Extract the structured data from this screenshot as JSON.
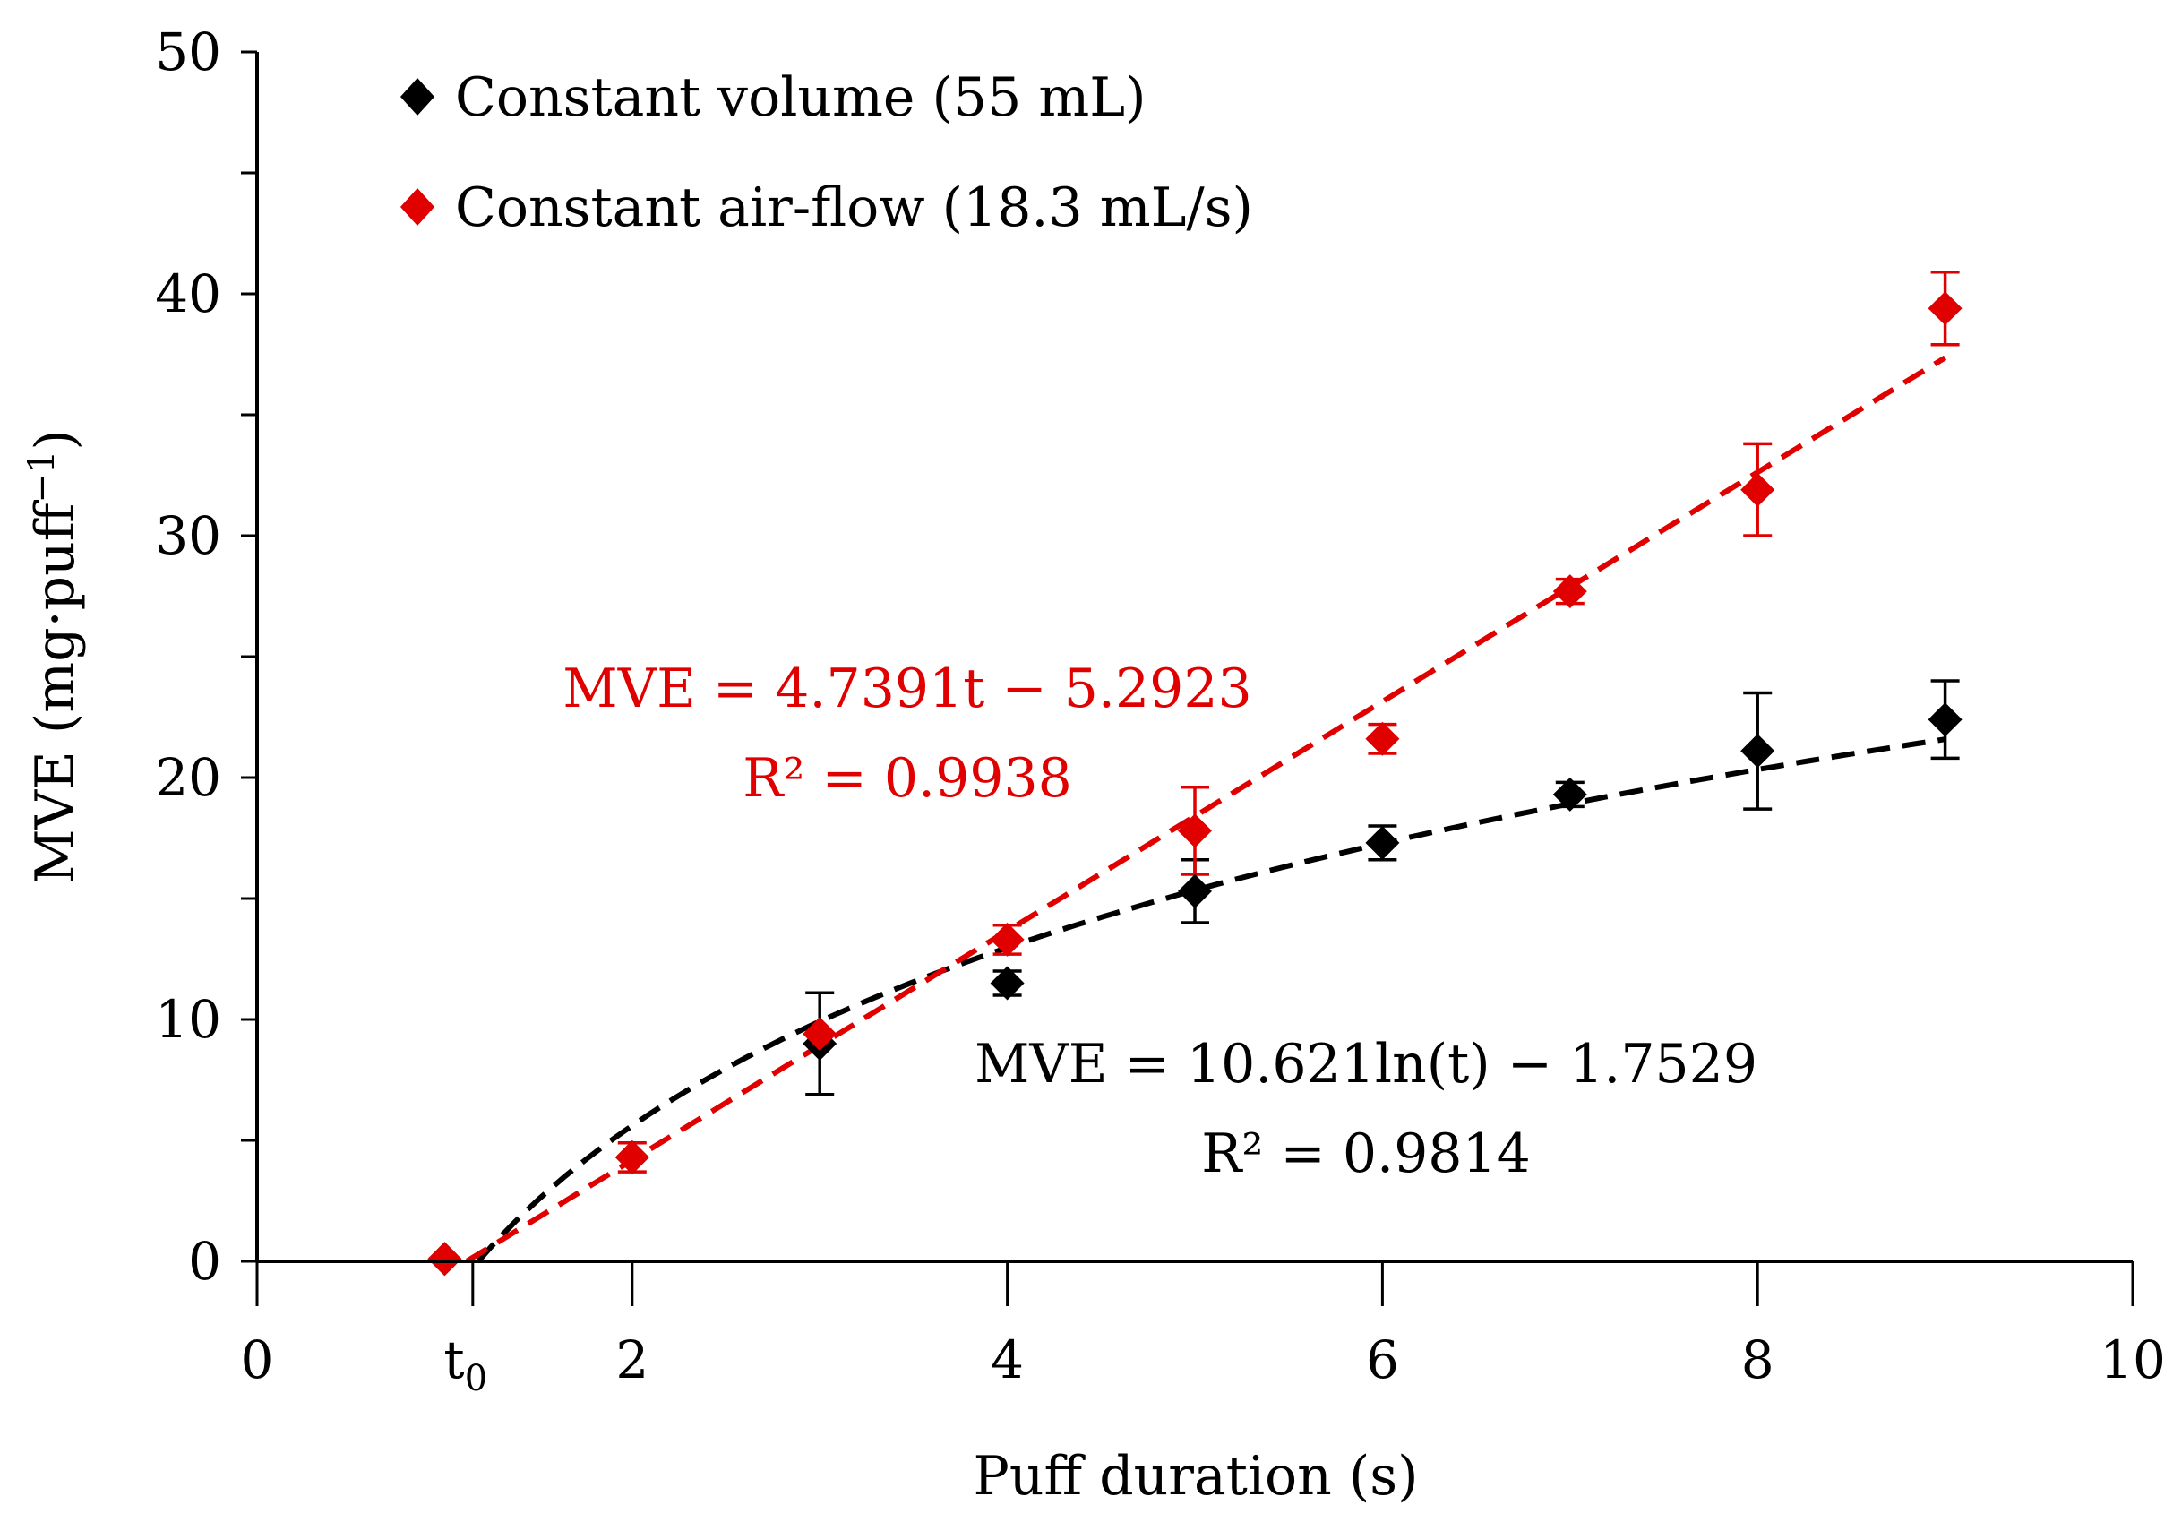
{
  "chart_data": {
    "type": "scatter",
    "title": "",
    "xlabel": "Puff duration (s)",
    "ylabel": "MVE (mg·puff",
    "ylabel_superscript": "−1",
    "ylabel_close": ")",
    "xlim": [
      0,
      10
    ],
    "ylim": [
      0,
      50
    ],
    "x_ticks": [
      {
        "value": 0,
        "label": "0"
      },
      {
        "value": 2,
        "label": "2"
      },
      {
        "value": 4,
        "label": "4"
      },
      {
        "value": 6,
        "label": "6"
      },
      {
        "value": 8,
        "label": "8"
      },
      {
        "value": 10,
        "label": "10"
      }
    ],
    "x_special_tick": {
      "value": 1.15,
      "label": "t",
      "subscript": "0"
    },
    "y_ticks": [
      {
        "value": 0,
        "label": "0"
      },
      {
        "value": 10,
        "label": "10"
      },
      {
        "value": 20,
        "label": "20"
      },
      {
        "value": 30,
        "label": "30"
      },
      {
        "value": 40,
        "label": "40"
      },
      {
        "value": 50,
        "label": "50"
      }
    ],
    "y_minor_step": 5,
    "grid": false,
    "legend_position": "top-left",
    "series": [
      {
        "name": "Constant volume (55 mL)",
        "color": "#000000",
        "marker": "diamond",
        "x": [
          1.0,
          2,
          3,
          4,
          5,
          6,
          7,
          8,
          9
        ],
        "y": [
          0.1,
          4.3,
          9.0,
          11.5,
          15.3,
          17.3,
          19.3,
          21.1,
          22.4
        ],
        "err": [
          0,
          0,
          2.1,
          0.5,
          1.3,
          0.7,
          0.5,
          2.4,
          1.6
        ],
        "fit": {
          "kind": "log",
          "a": 10.621,
          "b": -1.7529,
          "x_start": 1.18,
          "x_end": 9.0
        },
        "equation": "MVE = 10.621ln(t) − 1.7529",
        "r2": "R² = 0.9814"
      },
      {
        "name": "Constant air-flow (18.3 mL/s)",
        "color": "#e00000",
        "marker": "diamond",
        "x": [
          1.0,
          2,
          3,
          4,
          5,
          6,
          7,
          8,
          9
        ],
        "y": [
          0.1,
          4.3,
          9.4,
          13.3,
          17.8,
          21.6,
          27.7,
          31.9,
          39.4
        ],
        "err": [
          0,
          0.6,
          0,
          0.6,
          1.8,
          0.6,
          0.5,
          1.9,
          1.5
        ],
        "fit": {
          "kind": "linear",
          "a": 4.7391,
          "b": -5.2923,
          "x_start": 1.12,
          "x_end": 9.0
        },
        "equation": "MVE = 4.7391t − 5.2923",
        "r2": "R² = 0.9938"
      }
    ]
  }
}
